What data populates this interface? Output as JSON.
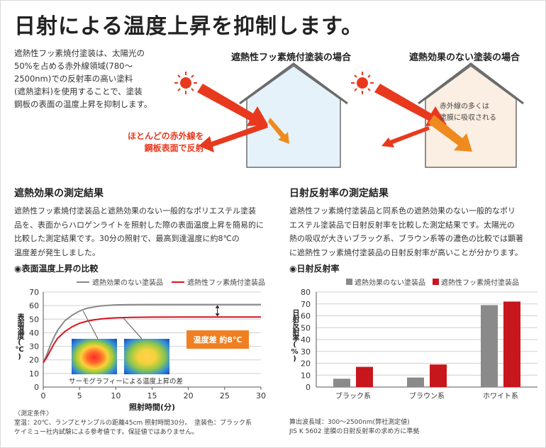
{
  "title": "日射による温度上昇を抑制します。",
  "intro": {
    "lines": [
      "遮熱性フッ素焼付塗装は、太陽光の",
      "50%を占める赤外線領域(780～",
      "2500nm)での反射率の高い塗料",
      "(遮熱塗料)を使用することで、塗装",
      "鋼板の表面の温度上昇を抑制します。"
    ]
  },
  "illustration": {
    "left_label": "遮熱性フッ素焼付塗装の場合",
    "right_label": "遮熱効果のない塗装の場合",
    "reflect_lines": [
      "ほとんどの赤外線を",
      "鋼板表面で反射"
    ],
    "absorb_lines": [
      "赤外線の多くは",
      "塗膜に吸収される"
    ],
    "colors": {
      "arrow_red": "#e8391e",
      "arrow_orange": "#ef8a1f",
      "house_left": "#e6f2fa",
      "house_right": "#fbeee2",
      "sun": "#e8391e"
    }
  },
  "left_section": {
    "title": "遮熱効果の測定結果",
    "body_lines": [
      "遮熱性フッ素焼付塗装品と遮熱効果のない一般的なポリエステル塗装",
      "品を、表面からハロゲンライトを照射した際の表面温度上昇を簡易的に",
      "比較した測定結果です。30分の照射で、最高到達温度に約8℃の",
      "温度差が発生しました。"
    ],
    "chart_heading": "◉表面温度上昇の比較",
    "temp_diff_label": "温度差 約8℃",
    "thermo_caption": "サーモグラフィーによる温度上昇の差",
    "notes": [
      "〈測定条件〉",
      "室温：20℃、ランプとサンプルの距離45cm 照射時間30分。　塗装色：ブラック系",
      "ケイミュー社内試験による参考値です。保証値ではありません。"
    ]
  },
  "right_section": {
    "title": "日射反射率の測定結果",
    "body_lines": [
      "遮熱性フッ素焼付塗装品と同系色の遮熱効果のない一般的なポリ",
      "エステル塗装品で日射反射率を比較した測定結果です。太陽光の",
      "熱の吸収が大きいブラック系、ブラウン系等の濃色の比較では顕著",
      "に遮熱性フッ素焼付塗装品の日射反射率が高いことが分かります。"
    ],
    "chart_heading": "◉日射反射率",
    "notes": [
      "算出波長域：300～2500nm(弊社測定値)",
      "JIS K 5602 塗膜の日射反射率の求め方に準拠"
    ]
  },
  "chart_data": [
    {
      "type": "line",
      "xlabel": "照射時間(分)",
      "ylabel": "表面温度(℃)",
      "xlim": [
        0,
        30
      ],
      "ylim": [
        0,
        70
      ],
      "xticks": [
        "0",
        "5",
        "10",
        "15",
        "20",
        "25",
        "30"
      ],
      "yticks": [
        "0",
        "10",
        "20",
        "30",
        "40",
        "50",
        "60",
        "70"
      ],
      "legend_position": "top",
      "series": [
        {
          "name": "遮熱効果のない塗装品",
          "color": "#888888",
          "x": [
            0,
            0.5,
            1,
            1.5,
            2,
            3,
            4,
            5,
            6,
            7,
            8,
            9,
            10,
            12,
            15,
            20,
            25,
            30
          ],
          "y": [
            18,
            24,
            31,
            37,
            42,
            49,
            53,
            56,
            58,
            59,
            59.8,
            60.2,
            60.5,
            60.7,
            60.8,
            60.8,
            60.8,
            60.8
          ]
        },
        {
          "name": "遮熱性フッ素焼付塗装品",
          "color": "#d7131f",
          "x": [
            0,
            0.5,
            1,
            1.5,
            2,
            3,
            4,
            5,
            6,
            7,
            8,
            9,
            10,
            12,
            15,
            20,
            25,
            30
          ],
          "y": [
            18,
            22,
            27,
            32,
            36,
            41,
            44.5,
            47,
            48.5,
            49.5,
            50.2,
            50.7,
            51,
            51.3,
            51.5,
            51.6,
            51.6,
            51.6
          ]
        }
      ]
    },
    {
      "type": "bar",
      "ylabel": "日射反射率(%)",
      "categories": [
        "ブラック系",
        "ブラウン系",
        "ホワイト系"
      ],
      "ylim": [
        0,
        80
      ],
      "yticks": [
        "0",
        "10",
        "20",
        "30",
        "40",
        "50",
        "60",
        "70",
        "80"
      ],
      "legend_position": "top",
      "series": [
        {
          "name": "遮熱効果のない塗装品",
          "color": "#8a8a8a",
          "values": [
            7,
            8,
            69
          ]
        },
        {
          "name": "遮熱性フッ素焼付塗装品",
          "color": "#c8161d",
          "values": [
            17,
            19,
            72
          ]
        }
      ]
    }
  ]
}
